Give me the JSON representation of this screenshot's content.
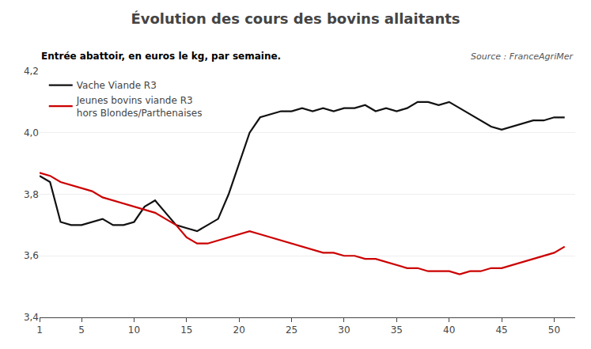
{
  "chart_data": {
    "type": "line",
    "title": "Évolution des cours des bovins allaitants",
    "subtitle": "Entrée abattoir, en euros le kg, par semaine.",
    "annotations": [
      "Source : FranceAgriMer"
    ],
    "x": [
      1,
      2,
      3,
      4,
      5,
      6,
      7,
      8,
      9,
      10,
      11,
      12,
      13,
      14,
      15,
      16,
      17,
      18,
      19,
      20,
      21,
      22,
      23,
      24,
      25,
      26,
      27,
      28,
      29,
      30,
      31,
      32,
      33,
      34,
      35,
      36,
      37,
      38,
      39,
      40,
      41,
      42,
      43,
      44,
      45,
      46,
      47,
      48,
      49,
      50,
      51
    ],
    "series": [
      {
        "name": "Vache Viande R3",
        "color": "#111111",
        "values": [
          3.86,
          3.84,
          3.71,
          3.7,
          3.7,
          3.71,
          3.72,
          3.7,
          3.7,
          3.71,
          3.76,
          3.78,
          3.74,
          3.7,
          3.69,
          3.68,
          3.7,
          3.72,
          3.8,
          3.9,
          4.0,
          4.05,
          4.06,
          4.07,
          4.07,
          4.08,
          4.07,
          4.08,
          4.07,
          4.08,
          4.08,
          4.09,
          4.07,
          4.08,
          4.07,
          4.08,
          4.1,
          4.1,
          4.09,
          4.1,
          4.08,
          4.06,
          4.04,
          4.02,
          4.01,
          4.02,
          4.03,
          4.04,
          4.04,
          4.05,
          4.05
        ]
      },
      {
        "name": "Jeunes bovins viande R3\nhors Blondes/Parthenaises",
        "color": "#cc0000",
        "values": [
          3.87,
          3.86,
          3.84,
          3.83,
          3.82,
          3.81,
          3.79,
          3.78,
          3.77,
          3.76,
          3.75,
          3.74,
          3.72,
          3.7,
          3.66,
          3.64,
          3.64,
          3.65,
          3.66,
          3.67,
          3.68,
          3.67,
          3.66,
          3.65,
          3.64,
          3.63,
          3.62,
          3.61,
          3.61,
          3.6,
          3.6,
          3.59,
          3.59,
          3.58,
          3.57,
          3.56,
          3.56,
          3.55,
          3.55,
          3.55,
          3.54,
          3.55,
          3.55,
          3.56,
          3.56,
          3.57,
          3.58,
          3.59,
          3.6,
          3.61,
          3.63
        ]
      }
    ],
    "xlim": [
      1,
      52
    ],
    "xticks": [
      1,
      5,
      10,
      15,
      20,
      25,
      30,
      35,
      40,
      45,
      50
    ],
    "ylim": [
      3.4,
      4.2
    ],
    "yticks": [
      {
        "value": 3.4,
        "label": "3,4"
      },
      {
        "value": 3.6,
        "label": "3,6"
      },
      {
        "value": 3.8,
        "label": "3,8"
      },
      {
        "value": 4.0,
        "label": "4,0"
      },
      {
        "value": 4.2,
        "label": "4,2"
      }
    ],
    "grid": true,
    "legend": "upper left"
  }
}
